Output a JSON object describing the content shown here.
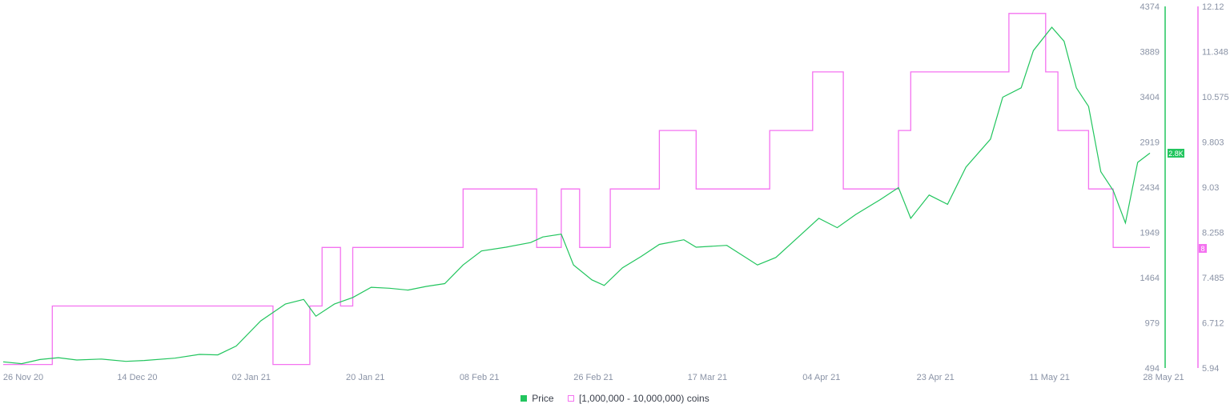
{
  "chart_data": {
    "type": "line",
    "x_ticks": [
      "26 Nov 20",
      "14 Dec 20",
      "02 Jan 21",
      "20 Jan 21",
      "08 Feb 21",
      "26 Feb 21",
      "17 Mar 21",
      "04 Apr 21",
      "23 Apr 21",
      "11 May 21",
      "28 May 21"
    ],
    "x_range": [
      "2020-11-22",
      "2021-05-28"
    ],
    "y_left": {
      "ticks": [
        "4374",
        "3889",
        "3404",
        "2919",
        "2434",
        "1949",
        "1464",
        "979",
        "494"
      ],
      "range": [
        494,
        4374
      ],
      "color": "#22c55e"
    },
    "y_right": {
      "ticks": [
        "12.12",
        "11.348",
        "10.575",
        "9.803",
        "9.03",
        "8.258",
        "7.485",
        "6.712",
        "5.94"
      ],
      "range": [
        5.94,
        12.12
      ],
      "color": "#f472f0"
    },
    "current_labels": {
      "price": "2.8K",
      "coins": "8"
    },
    "series": [
      {
        "name": "Price",
        "axis": "left",
        "color": "#22c55e",
        "points": [
          [
            "2020-11-22",
            560
          ],
          [
            "2020-11-25",
            540
          ],
          [
            "2020-11-28",
            585
          ],
          [
            "2020-12-01",
            605
          ],
          [
            "2020-12-04",
            580
          ],
          [
            "2020-12-08",
            590
          ],
          [
            "2020-12-12",
            565
          ],
          [
            "2020-12-15",
            575
          ],
          [
            "2020-12-20",
            600
          ],
          [
            "2020-12-24",
            640
          ],
          [
            "2020-12-27",
            635
          ],
          [
            "2020-12-30",
            730
          ],
          [
            "2021-01-03",
            1000
          ],
          [
            "2021-01-07",
            1180
          ],
          [
            "2021-01-10",
            1230
          ],
          [
            "2021-01-12",
            1050
          ],
          [
            "2021-01-15",
            1180
          ],
          [
            "2021-01-18",
            1250
          ],
          [
            "2021-01-21",
            1360
          ],
          [
            "2021-01-24",
            1350
          ],
          [
            "2021-01-27",
            1330
          ],
          [
            "2021-01-30",
            1370
          ],
          [
            "2021-02-02",
            1400
          ],
          [
            "2021-02-05",
            1600
          ],
          [
            "2021-02-08",
            1750
          ],
          [
            "2021-02-12",
            1790
          ],
          [
            "2021-02-16",
            1840
          ],
          [
            "2021-02-18",
            1900
          ],
          [
            "2021-02-21",
            1930
          ],
          [
            "2021-02-23",
            1600
          ],
          [
            "2021-02-26",
            1440
          ],
          [
            "2021-02-28",
            1380
          ],
          [
            "2021-03-03",
            1570
          ],
          [
            "2021-03-06",
            1690
          ],
          [
            "2021-03-09",
            1820
          ],
          [
            "2021-03-13",
            1870
          ],
          [
            "2021-03-15",
            1790
          ],
          [
            "2021-03-20",
            1810
          ],
          [
            "2021-03-25",
            1600
          ],
          [
            "2021-03-28",
            1680
          ],
          [
            "2021-04-01",
            1920
          ],
          [
            "2021-04-04",
            2100
          ],
          [
            "2021-04-07",
            2000
          ],
          [
            "2021-04-10",
            2140
          ],
          [
            "2021-04-14",
            2300
          ],
          [
            "2021-04-17",
            2430
          ],
          [
            "2021-04-19",
            2100
          ],
          [
            "2021-04-22",
            2350
          ],
          [
            "2021-04-25",
            2250
          ],
          [
            "2021-04-28",
            2650
          ],
          [
            "2021-05-02",
            2950
          ],
          [
            "2021-05-04",
            3400
          ],
          [
            "2021-05-07",
            3500
          ],
          [
            "2021-05-09",
            3900
          ],
          [
            "2021-05-12",
            4150
          ],
          [
            "2021-05-14",
            4000
          ],
          [
            "2021-05-16",
            3500
          ],
          [
            "2021-05-18",
            3300
          ],
          [
            "2021-05-20",
            2600
          ],
          [
            "2021-05-22",
            2400
          ],
          [
            "2021-05-24",
            2050
          ],
          [
            "2021-05-26",
            2700
          ],
          [
            "2021-05-28",
            2800
          ]
        ]
      },
      {
        "name": "[1,000,000 - 10,000,000) coins",
        "axis": "right",
        "color": "#f472f0",
        "points": [
          [
            "2020-11-22",
            6
          ],
          [
            "2020-11-30",
            7
          ],
          [
            "2021-01-05",
            6
          ],
          [
            "2021-01-11",
            7
          ],
          [
            "2021-01-13",
            8
          ],
          [
            "2021-01-16",
            7
          ],
          [
            "2021-01-18",
            8
          ],
          [
            "2021-02-05",
            9
          ],
          [
            "2021-02-17",
            8
          ],
          [
            "2021-02-21",
            9
          ],
          [
            "2021-02-24",
            8
          ],
          [
            "2021-02-29",
            9
          ],
          [
            "2021-03-09",
            10
          ],
          [
            "2021-03-15",
            9
          ],
          [
            "2021-03-27",
            10
          ],
          [
            "2021-04-03",
            11
          ],
          [
            "2021-04-08",
            9
          ],
          [
            "2021-04-17",
            10
          ],
          [
            "2021-04-19",
            11
          ],
          [
            "2021-05-05",
            12
          ],
          [
            "2021-05-11",
            11
          ],
          [
            "2021-05-13",
            10
          ],
          [
            "2021-05-18",
            9
          ],
          [
            "2021-05-22",
            8
          ],
          [
            "2021-05-28",
            8
          ]
        ]
      }
    ],
    "legend": [
      {
        "label": "Price",
        "color": "#22c55e",
        "filled": true
      },
      {
        "label": "[1,000,000 - 10,000,000) coins",
        "color": "#f472f0",
        "filled": false
      }
    ]
  }
}
